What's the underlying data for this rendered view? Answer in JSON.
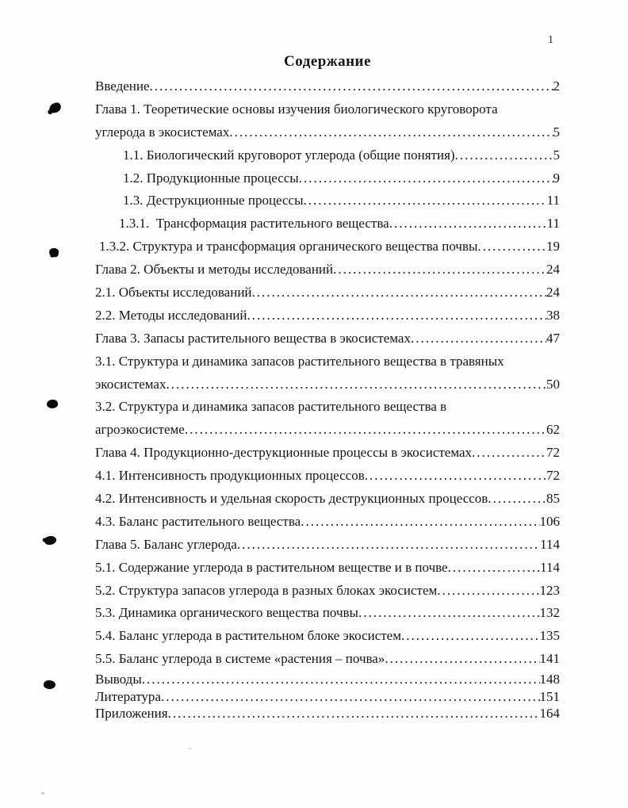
{
  "page": {
    "number": "1",
    "title": "Содержание"
  },
  "toc": {
    "rows": [
      {
        "text": "Введение",
        "page": "2"
      },
      {
        "text": "Глава 1. Теоретические основы изучения биологического круговорота",
        "page": ""
      },
      {
        "text": "углерода в экосистемах",
        "page": "5"
      },
      {
        "text": "1.1. Биологический круговорот углерода (общие понятия)",
        "page": "5"
      },
      {
        "text": "1.2. Продукционные процессы",
        "page": "9"
      },
      {
        "text": "1.3. Деструкционные процессы",
        "page": "11"
      },
      {
        "text": "1.3.1.  Трансформация растительного вещества",
        "page": "11"
      },
      {
        "text": "1.3.2. Структура и трансформация органического вещества почвы",
        "page": "19"
      },
      {
        "text": "Глава 2. Объекты и методы исследований",
        "page": "24"
      },
      {
        "text": "2.1. Объекты исследований",
        "page": "24"
      },
      {
        "text": "2.2. Методы исследований",
        "page": "38"
      },
      {
        "text": "Глава 3. Запасы растительного вещества в экосистемах",
        "page": "47"
      },
      {
        "text": "3.1. Структура и динамика запасов растительного вещества в травяных",
        "page": ""
      },
      {
        "text": "экосистемах",
        "page": "50"
      },
      {
        "text": "3.2. Структура и динамика запасов растительного вещества в",
        "page": ""
      },
      {
        "text": "агроэкосистеме",
        "page": "62"
      },
      {
        "text": "Глава 4. Продукционно-деструкционные процессы в экосистемах",
        "page": "72"
      },
      {
        "text": "4.1. Интенсивность продукционных процессов",
        "page": "72"
      },
      {
        "text": "4.2. Интенсивность и удельная скорость деструкционных процессов",
        "page": "85"
      },
      {
        "text": "4.3. Баланс растительного вещества",
        "page": "106"
      },
      {
        "text": "Глава 5. Баланс углерода",
        "page": "114"
      },
      {
        "text": "5.1. Содержание углерода в растительном веществе и в почве",
        "page": "114"
      },
      {
        "text": "5.2. Структура запасов углерода в разных блоках экосистем",
        "page": "123"
      },
      {
        "text": "5.3. Динамика органического вещества почвы",
        "page": "132"
      },
      {
        "text": "5.4. Баланс углерода в растительном блоке экосистем",
        "page": "135"
      },
      {
        "text": "5.5. Баланс углерода в системе «растения – почва»",
        "page": "141"
      },
      {
        "text": "Выводы",
        "page": "148"
      },
      {
        "text": "Литература",
        "page": "151"
      },
      {
        "text": "Приложения",
        "page": "164"
      }
    ]
  }
}
